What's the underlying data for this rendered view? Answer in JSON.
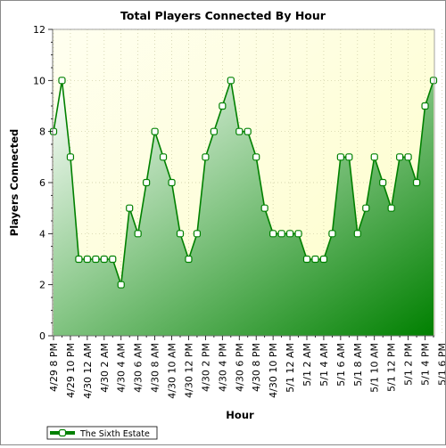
{
  "chart_data": {
    "type": "area",
    "title": "Total Players Connected By Hour",
    "xlabel": "Hour",
    "ylabel": "Players Connected",
    "ylim": [
      0,
      12
    ],
    "yticks": [
      0,
      2,
      4,
      6,
      8,
      10,
      12
    ],
    "x_tick_labels": [
      "4/29 8 PM",
      "4/29 10 PM",
      "4/30 12 AM",
      "4/30 2 AM",
      "4/30 4 AM",
      "4/30 6 AM",
      "4/30 8 AM",
      "4/30 10 AM",
      "4/30 12 PM",
      "4/30 2 PM",
      "4/30 4 PM",
      "4/30 6 PM",
      "4/30 8 PM",
      "4/30 10 PM",
      "5/1 12 AM",
      "5/1 2 AM",
      "5/1 4 AM",
      "5/1 6 AM",
      "5/1 8 AM",
      "5/1 10 AM",
      "5/1 12 PM",
      "5/1 2 PM",
      "5/1 4 PM",
      "5/1 6 PM"
    ],
    "legend_position": "bottom-left",
    "series": [
      {
        "name": "The Sixth Estate",
        "color": "#008000",
        "values": [
          8,
          10,
          7,
          3,
          3,
          3,
          3,
          3,
          2,
          5,
          4,
          6,
          8,
          7,
          6,
          4,
          3,
          4,
          7,
          8,
          9,
          10,
          8,
          8,
          7,
          5,
          4,
          4,
          4,
          4,
          3,
          3,
          3,
          4,
          7,
          7,
          4,
          5,
          7,
          6,
          5,
          7,
          7,
          6,
          9,
          10
        ]
      }
    ]
  }
}
